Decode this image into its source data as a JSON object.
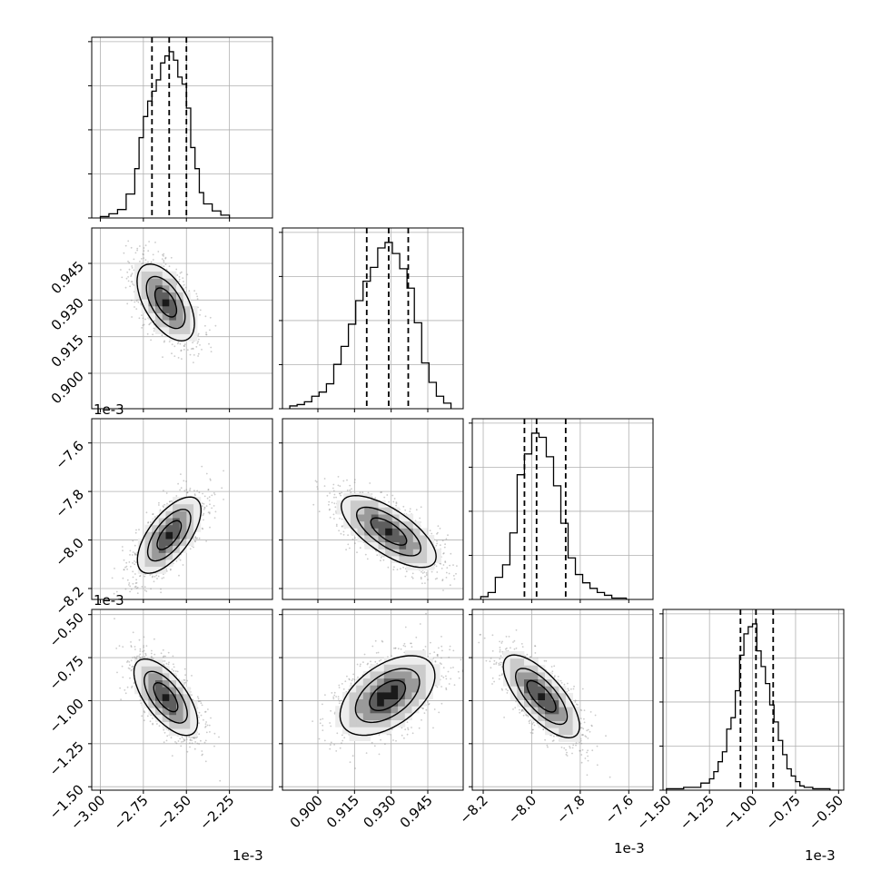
{
  "chart_data": {
    "type": "corner",
    "colors": {
      "hist": "#000000",
      "grid": "#b0b0b0",
      "points": "#8c8c8c",
      "contour": "#000000"
    },
    "grid": true,
    "params": [
      {
        "range": [
          -3.05,
          -2.0
        ],
        "ticks": [
          -3.0,
          -2.75,
          -2.5,
          -2.25
        ],
        "tick_labels": [
          "−3.00",
          "−2.75",
          "−2.50",
          "−2.25"
        ],
        "offset": "1e-3"
      },
      {
        "range": [
          0.8855,
          0.9595
        ],
        "ticks": [
          0.9,
          0.915,
          0.93,
          0.945
        ],
        "tick_labels": [
          "0.900",
          "0.915",
          "0.930",
          "0.945"
        ],
        "offset": "1e-3"
      },
      {
        "range": [
          -8.245,
          -7.5
        ],
        "ticks": [
          -8.2,
          -8.0,
          -7.8,
          -7.6
        ],
        "tick_labels": [
          "−8.2",
          "−8.0",
          "−7.8",
          "−7.6"
        ],
        "offset": "1e-3"
      },
      {
        "range": [
          -1.52,
          -0.47
        ],
        "ticks": [
          -1.5,
          -1.25,
          -1.0,
          -0.75,
          -0.5
        ],
        "tick_labels": [
          "−1.50",
          "−1.25",
          "−1.00",
          "−0.75",
          "−0.50"
        ],
        "offset": "1e-3"
      }
    ],
    "histograms": [
      {
        "edges": [
          -3.0,
          -2.95,
          -2.9,
          -2.85,
          -2.8,
          -2.775,
          -2.75,
          -2.725,
          -2.7,
          -2.675,
          -2.65,
          -2.625,
          -2.6,
          -2.575,
          -2.55,
          -2.525,
          -2.5,
          -2.475,
          -2.45,
          -2.425,
          -2.4,
          -2.35,
          -2.3,
          -2.25
        ],
        "counts": [
          1,
          3,
          6,
          17,
          35,
          57,
          72,
          83,
          90,
          98,
          110,
          115,
          118,
          112,
          100,
          95,
          78,
          50,
          35,
          18,
          10,
          5,
          2
        ],
        "quantiles": [
          -2.7,
          -2.6,
          -2.5
        ]
      },
      {
        "edges": [
          0.8885,
          0.8915,
          0.8945,
          0.8975,
          0.9005,
          0.9035,
          0.9065,
          0.9095,
          0.9125,
          0.9155,
          0.9185,
          0.9215,
          0.9245,
          0.9275,
          0.9305,
          0.9335,
          0.9365,
          0.9395,
          0.9425,
          0.9455,
          0.9485,
          0.9515,
          0.9545
        ],
        "counts": [
          2,
          3,
          5,
          9,
          12,
          18,
          32,
          45,
          61,
          78,
          92,
          102,
          116,
          120,
          112,
          101,
          87,
          62,
          33,
          19,
          9,
          4
        ],
        "quantiles": [
          0.92,
          0.929,
          0.937
        ]
      },
      {
        "edges": [
          -8.21,
          -8.18,
          -8.15,
          -8.12,
          -8.09,
          -8.06,
          -8.03,
          -8.0,
          -7.97,
          -7.94,
          -7.91,
          -7.88,
          -7.85,
          -7.82,
          -7.79,
          -7.76,
          -7.73,
          -7.7,
          -7.67,
          -7.64,
          -7.61
        ],
        "counts": [
          2,
          5,
          16,
          25,
          48,
          90,
          105,
          120,
          117,
          103,
          82,
          55,
          30,
          18,
          12,
          8,
          5,
          3,
          1,
          1
        ],
        "quantiles": [
          -8.03,
          -7.98,
          -7.86
        ]
      },
      {
        "edges": [
          -1.5,
          -1.4,
          -1.3,
          -1.25,
          -1.225,
          -1.2,
          -1.175,
          -1.15,
          -1.125,
          -1.1,
          -1.075,
          -1.05,
          -1.025,
          -1.0,
          -0.975,
          -0.95,
          -0.925,
          -0.9,
          -0.875,
          -0.85,
          -0.825,
          -0.8,
          -0.775,
          -0.75,
          -0.725,
          -0.7,
          -0.65,
          -0.6,
          -0.55
        ],
        "counts": [
          1,
          2,
          5,
          8,
          13,
          20,
          27,
          43,
          51,
          70,
          95,
          110,
          115,
          117,
          98,
          87,
          75,
          60,
          48,
          35,
          25,
          15,
          10,
          6,
          3,
          2,
          1,
          1
        ],
        "quantiles": [
          -1.07,
          -0.98,
          -0.88
        ]
      }
    ],
    "pairs": [
      {
        "x": 0,
        "y": 1,
        "center": [
          -2.62,
          0.929
        ],
        "sd": [
          0.09,
          0.0085
        ],
        "rho": -0.55
      },
      {
        "x": 0,
        "y": 2,
        "center": [
          -2.6,
          -7.98
        ],
        "sd": [
          0.1,
          0.085
        ],
        "rho": 0.65
      },
      {
        "x": 1,
        "y": 2,
        "center": [
          0.929,
          -7.965
        ],
        "sd": [
          0.0105,
          0.08
        ],
        "rho": -0.7
      },
      {
        "x": 0,
        "y": 3,
        "center": [
          -2.62,
          -0.98
        ],
        "sd": [
          0.1,
          0.12
        ],
        "rho": -0.65
      },
      {
        "x": 1,
        "y": 3,
        "center": [
          0.9285,
          -0.97
        ],
        "sd": [
          0.0105,
          0.125
        ],
        "rho": 0.5
      },
      {
        "x": 2,
        "y": 3,
        "center": [
          -7.96,
          -0.975
        ],
        "sd": [
          0.085,
          0.13
        ],
        "rho": -0.72
      }
    ]
  }
}
